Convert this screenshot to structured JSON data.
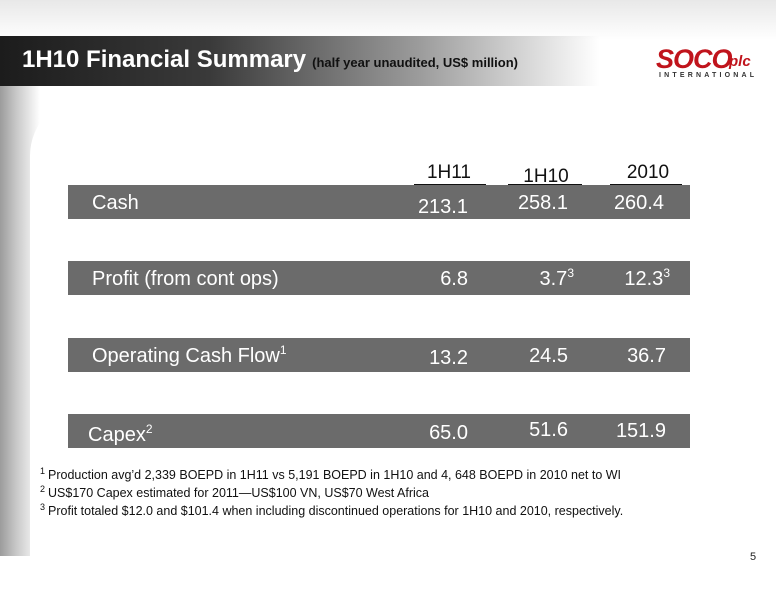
{
  "header": {
    "title": "1H10 Financial Summary",
    "subtitle": "(half year unaudited, US$ million)"
  },
  "logo": {
    "main": "SOCO",
    "suffix": "plc",
    "sub": "INTERNATIONAL"
  },
  "table": {
    "columns": [
      "1H11",
      "1H10",
      "2010"
    ],
    "rows": [
      {
        "label": "Cash",
        "label_sup": "",
        "values": [
          "213.1",
          "258.1",
          "260.4"
        ],
        "sups": [
          "",
          "",
          ""
        ]
      },
      {
        "label": "Profit (from cont ops)",
        "label_sup": "",
        "values": [
          "6.8",
          "3.7",
          "12.3"
        ],
        "sups": [
          "",
          "3",
          "3"
        ]
      },
      {
        "label": "Operating Cash Flow",
        "label_sup": "1",
        "values": [
          "13.2",
          "24.5",
          "36.7"
        ],
        "sups": [
          "",
          "",
          ""
        ]
      },
      {
        "label": "Capex",
        "label_sup": "2",
        "values": [
          "65.0",
          "51.6",
          "151.9"
        ],
        "sups": [
          "",
          "",
          ""
        ]
      }
    ]
  },
  "footnotes": [
    {
      "num": "1",
      "text": "Production avg’d 2,339 BOEPD in 1H11 vs 5,191 BOEPD in 1H10 and 4, 648 BOEPD in 2010 net to WI"
    },
    {
      "num": "2",
      "text": "US$170 Capex estimated for 2011—US$100 VN, US$70 West Africa"
    },
    {
      "num": "3",
      "text": "Profit totaled $12.0 and $101.4 when including discontinued operations for 1H10 and 2010, respectively."
    }
  ],
  "page_number": "5",
  "colors": {
    "brand_red": "#c0141c",
    "row_gray": "#6b6b6b",
    "title_bar_dark": "#1c1c1c"
  }
}
